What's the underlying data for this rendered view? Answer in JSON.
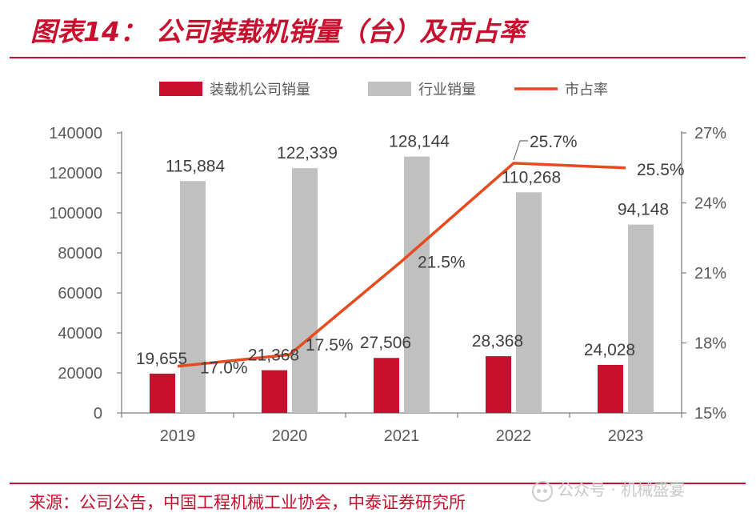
{
  "header": {
    "title": "图表14：  公司装载机销量（台）及市占率"
  },
  "footer": {
    "source": "来源：公司公告，中国工程机械工业协会，中泰证券研究所",
    "watermark": "公众号 · 机械盛宴"
  },
  "colors": {
    "company": "#c8102e",
    "industry": "#c0c0c0",
    "share": "#e8491d",
    "axis": "#7f7f7f",
    "text": "#595959"
  },
  "chart_data": {
    "type": "bar",
    "categories": [
      "2019",
      "2020",
      "2021",
      "2022",
      "2023"
    ],
    "series": [
      {
        "name": "装载机公司销量",
        "type": "bar",
        "axis": "left",
        "values": [
          19655,
          21368,
          27506,
          28368,
          24028
        ],
        "labels": [
          "19,655",
          "21,368",
          "27,506",
          "28,368",
          "24,028"
        ]
      },
      {
        "name": "行业销量",
        "type": "bar",
        "axis": "left",
        "values": [
          115884,
          122339,
          128144,
          110268,
          94148
        ],
        "labels": [
          "115,884",
          "122,339",
          "128,144",
          "110,268",
          "94,148"
        ]
      },
      {
        "name": "市占率",
        "type": "line",
        "axis": "right",
        "values": [
          17.0,
          17.5,
          21.5,
          25.7,
          25.5
        ],
        "labels": [
          "17.0%",
          "17.5%",
          "21.5%",
          "25.7%",
          "25.5%"
        ]
      }
    ],
    "y_left": {
      "ylim": [
        0,
        140000
      ],
      "ticks": [
        "0",
        "20000",
        "40000",
        "60000",
        "80000",
        "100000",
        "120000",
        "140000"
      ]
    },
    "y_right": {
      "ylim": [
        15,
        27
      ],
      "ticks": [
        "15%",
        "18%",
        "21%",
        "24%",
        "27%"
      ]
    },
    "legend": "top"
  }
}
